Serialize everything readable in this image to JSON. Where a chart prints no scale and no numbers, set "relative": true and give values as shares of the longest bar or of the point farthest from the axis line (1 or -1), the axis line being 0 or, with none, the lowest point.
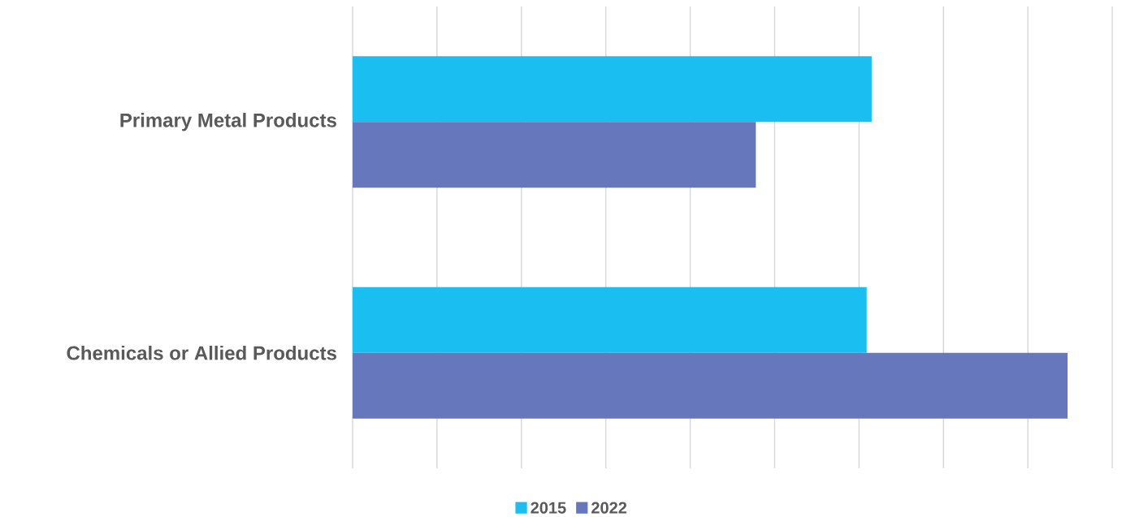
{
  "chart_data": {
    "type": "bar",
    "orientation": "horizontal",
    "relative": true,
    "categories": [
      "Primary Metal Products",
      "Chemicals or Allied Products"
    ],
    "series": [
      {
        "name": "2015",
        "color": "#1bbef0",
        "values": [
          0.726,
          0.719
        ]
      },
      {
        "name": "2022",
        "color": "#6677bb",
        "values": [
          0.564,
          1.0
        ]
      }
    ],
    "grid": "x",
    "legend": "bottom",
    "tick_labels": "y"
  }
}
